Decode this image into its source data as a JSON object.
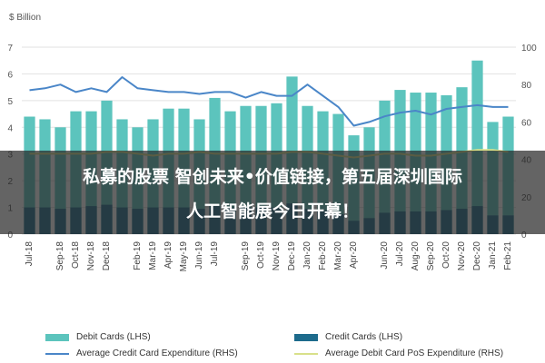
{
  "chart_data": {
    "type": "bar",
    "y_left_unit": "$ Billion",
    "ylim_left": [
      0,
      7
    ],
    "ylim_right": [
      0,
      100
    ],
    "left_ticks": [
      "0",
      "1",
      "2",
      "3",
      "4",
      "5",
      "6",
      "7"
    ],
    "right_ticks": [
      "0",
      "20",
      "40",
      "60",
      "80",
      "100"
    ],
    "categories": [
      "Jul-18",
      "Aug-18",
      "Sep-18",
      "Oct-18",
      "Nov-18",
      "Dec-18",
      "Jan-19",
      "Feb-19",
      "Mar-19",
      "Apr-19",
      "May-19",
      "Jun-19",
      "Jul-19",
      "Aug-19",
      "Sep-19",
      "Oct-19",
      "Nov-19",
      "Dec-19",
      "Jan-20",
      "Feb-20",
      "Mar-20",
      "Apr-20",
      "May-20",
      "Jun-20",
      "Jul-20",
      "Aug-20",
      "Sep-20",
      "Oct-20",
      "Nov-20",
      "Dec-20",
      "Jan-21",
      "Feb-21"
    ],
    "x_tick_labels": [
      "Jul-18",
      "Sep-18",
      "Oct-18",
      "Nov-18",
      "Dec-18",
      "Feb-19",
      "Mar-19",
      "Apr-19",
      "May-19",
      "Jun-19",
      "Jul-19",
      "Sep-19",
      "Oct-19",
      "Nov-19",
      "Dec-19",
      "Jan-20",
      "Feb-20",
      "Mar-20",
      "Apr-20",
      "Jun-20",
      "Jul-20",
      "Aug-20",
      "Sep-20",
      "Oct-20",
      "Nov-20",
      "Dec-20",
      "Jan-21",
      "Feb-21"
    ],
    "x_tick_indices": [
      0,
      2,
      3,
      4,
      5,
      7,
      8,
      9,
      10,
      11,
      12,
      14,
      15,
      16,
      17,
      18,
      19,
      20,
      21,
      23,
      24,
      25,
      26,
      27,
      28,
      29,
      30,
      31
    ],
    "series": [
      {
        "name": "Debit Cards (LHS)",
        "axis": "left",
        "kind": "bar",
        "color": "#5cc4bd",
        "values": [
          4.4,
          4.3,
          4.0,
          4.6,
          4.6,
          5.0,
          4.3,
          4.0,
          4.3,
          4.7,
          4.7,
          4.3,
          5.1,
          4.6,
          4.8,
          4.8,
          4.9,
          5.9,
          4.8,
          4.6,
          4.5,
          3.7,
          4.0,
          5.0,
          5.4,
          5.3,
          5.3,
          5.2,
          5.5,
          6.5,
          4.2,
          4.4
        ]
      },
      {
        "name": "Credit Cards (LHS)",
        "axis": "left",
        "kind": "bar",
        "color": "#1d6b8c",
        "values": [
          1.0,
          1.0,
          0.95,
          1.0,
          1.05,
          1.1,
          1.0,
          0.95,
          1.0,
          1.0,
          1.0,
          0.95,
          1.05,
          1.0,
          1.0,
          1.0,
          1.0,
          1.15,
          0.95,
          0.9,
          0.75,
          0.5,
          0.6,
          0.8,
          0.85,
          0.85,
          0.85,
          0.9,
          0.95,
          1.05,
          0.7,
          0.7
        ]
      },
      {
        "name": "Average Credit Card Expenditure (RHS)",
        "axis": "right",
        "kind": "line",
        "color": "#4a86c8",
        "values": [
          77,
          78,
          80,
          76,
          78,
          76,
          84,
          78,
          77,
          76,
          76,
          75,
          76,
          76,
          73,
          76,
          74,
          74,
          80,
          74,
          68,
          58,
          60,
          63,
          65,
          66,
          64,
          67,
          68,
          69,
          68,
          68
        ]
      },
      {
        "name": "Average Debit Card PoS Expenditure (RHS)",
        "axis": "right",
        "kind": "line",
        "color": "#d9e08a",
        "values": [
          43,
          43,
          43,
          43,
          43,
          44,
          44,
          43,
          42,
          43,
          43,
          44,
          43,
          43,
          43,
          43,
          43,
          44,
          44,
          43,
          42,
          41,
          42,
          43,
          43,
          42,
          42,
          43,
          44,
          45,
          45,
          44
        ]
      }
    ]
  },
  "overlay": {
    "line1": "私募的股票 智创未来•价值链接，第五届深圳国际",
    "line2": "人工智能展今日开幕！"
  }
}
